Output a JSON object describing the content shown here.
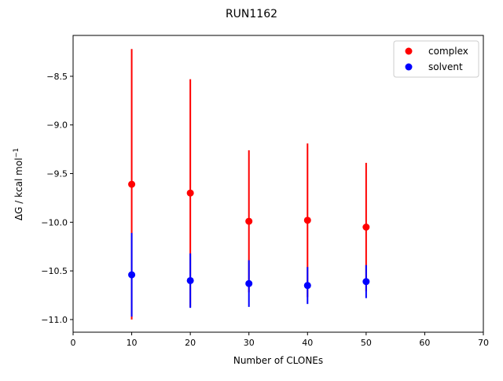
{
  "chart_data": {
    "type": "scatter",
    "title": "RUN1162",
    "xlabel": "Number of CLONEs",
    "ylabel_main": "ΔG / kcal mol",
    "ylabel_sup": "−1",
    "xlim": [
      0,
      70
    ],
    "ylim": [
      -11.13,
      -8.08
    ],
    "x_ticks": [
      0,
      10,
      20,
      30,
      40,
      50,
      60,
      70
    ],
    "x_tick_labels": [
      "0",
      "10",
      "20",
      "30",
      "40",
      "50",
      "60",
      "70"
    ],
    "y_ticks": [
      -8.5,
      -9.0,
      -9.5,
      -10.0,
      -10.5,
      -11.0
    ],
    "y_tick_labels": [
      "−8.5",
      "−9.0",
      "−9.5",
      "−10.0",
      "−10.5",
      "−11.0"
    ],
    "grid": false,
    "legend_position": "top-right",
    "series": [
      {
        "name": "complex",
        "color": "#ff0000",
        "x": [
          10,
          20,
          30,
          40,
          50
        ],
        "y": [
          -9.61,
          -9.7,
          -9.99,
          -9.98,
          -10.05
        ],
        "yerr": [
          1.39,
          1.17,
          0.73,
          0.79,
          0.66
        ]
      },
      {
        "name": "solvent",
        "color": "#0000ff",
        "x": [
          10,
          20,
          30,
          40,
          50
        ],
        "y": [
          -10.54,
          -10.6,
          -10.63,
          -10.65,
          -10.61
        ],
        "yerr": [
          0.43,
          0.28,
          0.24,
          0.19,
          0.17
        ]
      }
    ]
  }
}
